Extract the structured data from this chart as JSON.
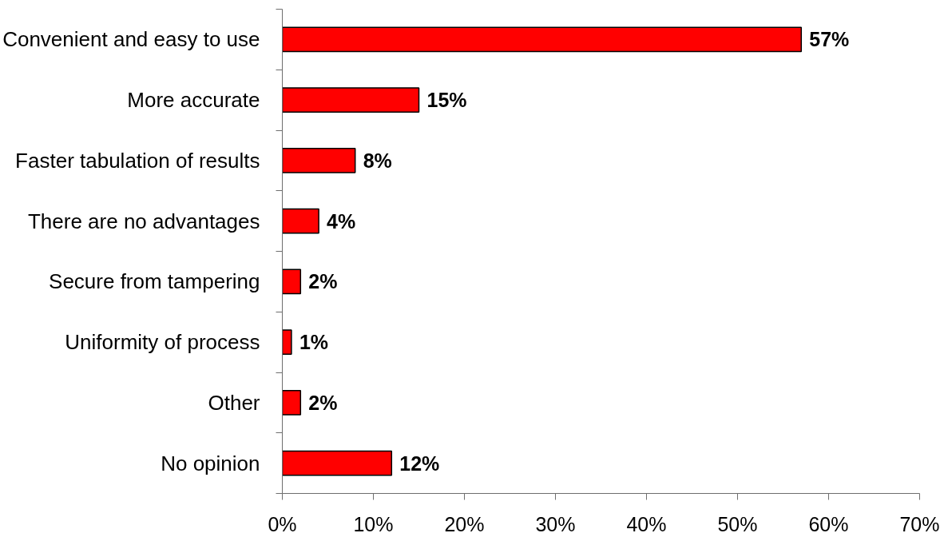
{
  "chart_data": {
    "type": "bar",
    "orientation": "horizontal",
    "categories": [
      "Convenient and easy to use",
      "More accurate",
      "Faster tabulation of results",
      "There are no advantages",
      "Secure from tampering",
      "Uniformity of process",
      "Other",
      "No opinion"
    ],
    "values": [
      57,
      15,
      8,
      4,
      2,
      1,
      2,
      12
    ],
    "value_labels": [
      "57%",
      "15%",
      "8%",
      "4%",
      "2%",
      "1%",
      "2%",
      "12%"
    ],
    "color": "#ff0000",
    "xlim": [
      0,
      70
    ],
    "xticks": [
      {
        "value": 0,
        "label": "0%"
      },
      {
        "value": 10,
        "label": "10%"
      },
      {
        "value": 20,
        "label": "20%"
      },
      {
        "value": 30,
        "label": "30%"
      },
      {
        "value": 40,
        "label": "40%"
      },
      {
        "value": 50,
        "label": "50%"
      },
      {
        "value": 60,
        "label": "60%"
      },
      {
        "value": 70,
        "label": "70%"
      }
    ]
  }
}
